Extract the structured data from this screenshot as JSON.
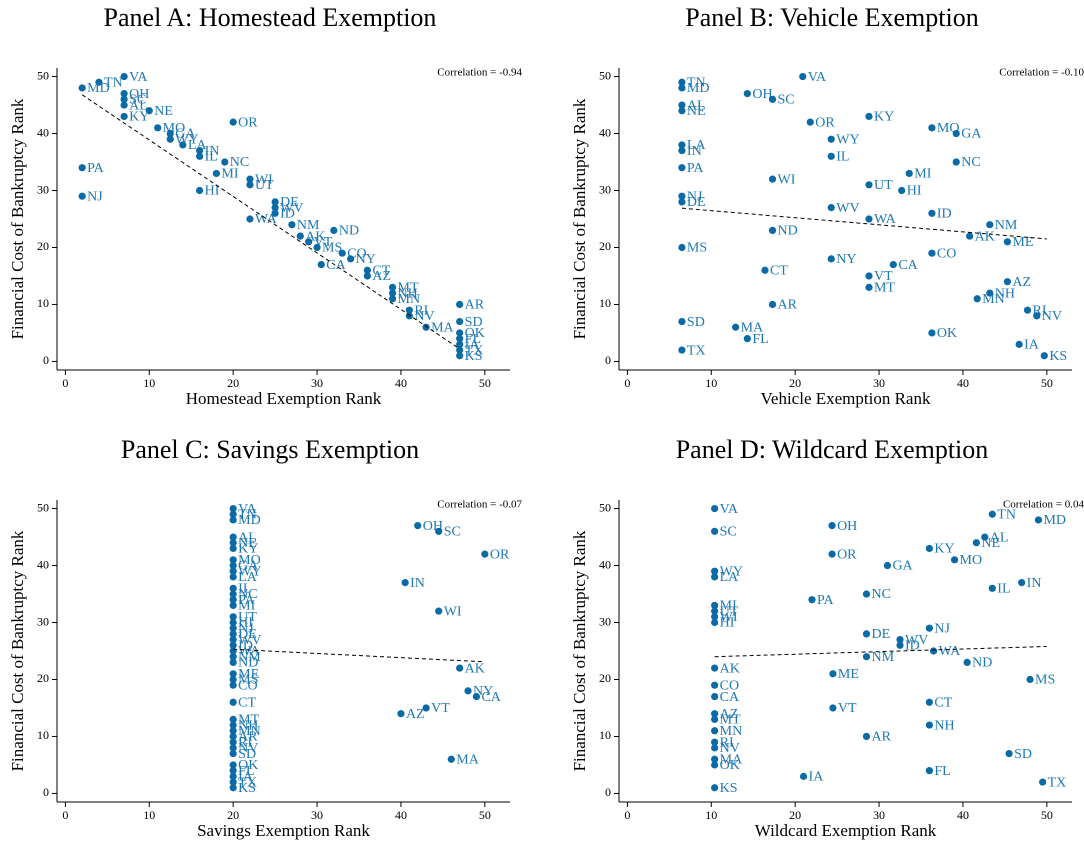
{
  "chart_data": [
    {
      "type": "scatter",
      "title": "Panel A: Homestead Exemption",
      "xlabel": "Homestead Exemption Rank",
      "ylabel": "Financial Cost of Bankruptcy Rank",
      "annotation": "Correlation = -0.94",
      "color": "#0a6aa6",
      "xlim": [
        -1,
        53
      ],
      "ylim": [
        -1.5,
        51.5
      ],
      "xticks": [
        0,
        10,
        20,
        30,
        40,
        50
      ],
      "yticks": [
        0,
        10,
        20,
        30,
        40,
        50
      ],
      "labels": [
        "VA",
        "TN",
        "MD",
        "OH",
        "SC",
        "AL",
        "NE",
        "KY",
        "OR",
        "MO",
        "GA",
        "WY",
        "LA",
        "IN",
        "IL",
        "NC",
        "PA",
        "MI",
        "WI",
        "UT",
        "HI",
        "NJ",
        "DE",
        "WV",
        "ID",
        "WA",
        "NM",
        "ND",
        "AK",
        "VT",
        "MS",
        "CO",
        "NY",
        "CA",
        "CT",
        "AZ",
        "MT",
        "NH",
        "MN",
        "AR",
        "RI",
        "NV",
        "SD",
        "MA",
        "OK",
        "FL",
        "IA",
        "TX",
        "KS"
      ],
      "x": [
        7,
        4,
        2,
        7,
        7,
        7,
        10,
        7,
        20,
        11,
        12.5,
        12.5,
        14,
        16,
        16,
        19,
        2,
        18,
        22,
        22,
        16,
        2,
        25,
        25,
        25,
        22,
        27,
        32,
        28,
        29,
        30,
        33,
        34,
        30.5,
        36,
        36,
        39,
        39,
        39,
        47,
        41,
        41,
        47,
        43,
        47,
        47,
        47,
        47,
        47
      ],
      "values": [
        50,
        49,
        48,
        47,
        46,
        45,
        44,
        43,
        42,
        41,
        40,
        39,
        38,
        37,
        36,
        35,
        34,
        33,
        32,
        31,
        30,
        29,
        28,
        27,
        26,
        25,
        24,
        23,
        22,
        21,
        20,
        19,
        18,
        17,
        16,
        15,
        13,
        12,
        11,
        10,
        9,
        8,
        7,
        6,
        5,
        4,
        3,
        2,
        1
      ],
      "fit_x": [
        2,
        47
      ],
      "fit_y": [
        46.8,
        2.2
      ]
    },
    {
      "type": "scatter",
      "title": "Panel B: Vehicle Exemption",
      "xlabel": "Vehicle Exemption Rank",
      "ylabel": "Financial Cost of Bankruptcy Rank",
      "annotation": "Correlation = -0.10",
      "color": "#0a6aa6",
      "xlim": [
        -1,
        53
      ],
      "ylim": [
        -1.5,
        51.5
      ],
      "xticks": [
        0,
        10,
        20,
        30,
        40,
        50
      ],
      "yticks": [
        0,
        10,
        20,
        30,
        40,
        50
      ],
      "labels": [
        "TN",
        "MD",
        "AL",
        "NE",
        "LA",
        "IN",
        "PA",
        "NJ",
        "DE",
        "MS",
        "SD",
        "TX",
        "VA",
        "OH",
        "SC",
        "OR",
        "KY",
        "WY",
        "IL",
        "MO",
        "GA",
        "NC",
        "MI",
        "HI",
        "UT",
        "WI",
        "WV",
        "WA",
        "ID",
        "NM",
        "AK",
        "ME",
        "ND",
        "NY",
        "CA",
        "CO",
        "CT",
        "VT",
        "MT",
        "AZ",
        "NH",
        "MN",
        "RI",
        "NV",
        "AR",
        "MA",
        "FL",
        "OK",
        "IA",
        "KS"
      ],
      "x": [
        6.5,
        6.5,
        6.5,
        6.5,
        6.5,
        6.5,
        6.5,
        6.5,
        6.5,
        6.5,
        6.5,
        6.5,
        20.9,
        14.3,
        17.3,
        21.8,
        28.8,
        24.3,
        24.3,
        36.3,
        39.2,
        39.2,
        33.6,
        32.7,
        28.8,
        17.3,
        24.3,
        28.8,
        36.3,
        43.2,
        40.8,
        45.3,
        17.3,
        24.3,
        31.7,
        36.3,
        16.4,
        28.8,
        28.8,
        45.3,
        43.2,
        41.7,
        47.7,
        48.8,
        17.3,
        12.9,
        14.3,
        36.3,
        46.7,
        49.7
      ],
      "values": [
        49,
        48,
        45,
        44,
        38,
        37,
        34,
        29,
        28,
        20,
        7,
        2,
        50,
        47,
        46,
        42,
        43,
        39,
        36,
        41,
        40,
        35,
        33,
        30,
        31,
        32,
        27,
        25,
        26,
        24,
        22,
        21,
        23,
        18,
        17,
        19,
        16,
        15,
        13,
        14,
        12,
        11,
        9,
        8,
        10,
        6,
        4,
        5,
        3,
        1
      ],
      "fit_x": [
        6.5,
        50
      ],
      "fit_y": [
        26.9,
        21.5
      ]
    },
    {
      "type": "scatter",
      "title": "Panel C: Savings Exemption",
      "xlabel": "Savings Exemption Rank",
      "ylabel": "Financial Cost of Bankruptcy Rank",
      "annotation": "Correlation = -0.07",
      "color": "#0a6aa6",
      "xlim": [
        -1,
        53
      ],
      "ylim": [
        -1.5,
        51.5
      ],
      "xticks": [
        0,
        10,
        20,
        30,
        40,
        50
      ],
      "yticks": [
        0,
        10,
        20,
        30,
        40,
        50
      ],
      "labels": [
        "VA",
        "TN",
        "MD",
        "AL",
        "NE",
        "KY",
        "MO",
        "GA",
        "WY",
        "LA",
        "IL",
        "NC",
        "PA",
        "MI",
        "UT",
        "HI",
        "NJ",
        "DE",
        "WV",
        "ID",
        "WA",
        "NM",
        "ND",
        "ME",
        "MS",
        "CO",
        "CT",
        "MT",
        "NH",
        "MN",
        "AR",
        "RI",
        "NV",
        "SD",
        "OK",
        "FL",
        "IA",
        "TX",
        "KS",
        "OH",
        "SC",
        "OR",
        "IN",
        "WI",
        "AK",
        "NY",
        "CA",
        "VT",
        "AZ",
        "MA"
      ],
      "x": [
        20,
        20,
        20,
        20,
        20,
        20,
        20,
        20,
        20,
        20,
        20,
        20,
        20,
        20,
        20,
        20,
        20,
        20,
        20,
        20,
        20,
        20,
        20,
        20,
        20,
        20,
        20,
        20,
        20,
        20,
        20,
        20,
        20,
        20,
        20,
        20,
        20,
        20,
        20,
        42,
        44.5,
        50,
        40.5,
        44.5,
        47,
        48,
        49,
        43,
        40,
        46
      ],
      "values": [
        50,
        49,
        48,
        45,
        44,
        43,
        41,
        40,
        39,
        38,
        36,
        35,
        34,
        33,
        31,
        30,
        29,
        28,
        27,
        26,
        25,
        24,
        23,
        21,
        20,
        19,
        16,
        13,
        12,
        11,
        10,
        9,
        8,
        7,
        5,
        4,
        3,
        2,
        1,
        47,
        46,
        42,
        37,
        32,
        22,
        18,
        17,
        15,
        14,
        6
      ],
      "fit_x": [
        20,
        50
      ],
      "fit_y": [
        25.3,
        23.1
      ]
    },
    {
      "type": "scatter",
      "title": "Panel D: Wildcard Exemption",
      "xlabel": "Wildcard Exemption Rank",
      "ylabel": "Financial Cost of Bankruptcy Rank",
      "annotation": "Correlation = 0.04",
      "color": "#0a6aa6",
      "xlim": [
        -1,
        53
      ],
      "ylim": [
        -1.5,
        51.5
      ],
      "xticks": [
        0,
        10,
        20,
        30,
        40,
        50
      ],
      "yticks": [
        0,
        10,
        20,
        30,
        40,
        50
      ],
      "labels": [
        "VA",
        "SC",
        "WY",
        "LA",
        "MI",
        "UT",
        "WI",
        "HI",
        "AK",
        "CO",
        "CA",
        "AZ",
        "MT",
        "MN",
        "RI",
        "NV",
        "MA",
        "OK",
        "KS",
        "OH",
        "OR",
        "PA",
        "GA",
        "MO",
        "KY",
        "NE",
        "AL",
        "TN",
        "MD",
        "IL",
        "IN",
        "NC",
        "NJ",
        "DE",
        "WV",
        "ID",
        "NM",
        "WA",
        "ND",
        "MS",
        "ME",
        "CT",
        "NH",
        "VT",
        "AR",
        "SD",
        "FL",
        "IA",
        "TX"
      ],
      "x": [
        10.4,
        10.4,
        10.4,
        10.4,
        10.4,
        10.4,
        10.4,
        10.4,
        10.4,
        10.4,
        10.4,
        10.4,
        10.4,
        10.4,
        10.4,
        10.4,
        10.4,
        10.4,
        10.4,
        24.4,
        24.4,
        22,
        31,
        39,
        36,
        41.6,
        42.6,
        43.5,
        49,
        43.5,
        47,
        28.5,
        36,
        28.5,
        32.5,
        32.5,
        28.5,
        36.5,
        40.5,
        48,
        24.5,
        36,
        36,
        24.5,
        28.5,
        45.5,
        36,
        21,
        49.5
      ],
      "values": [
        50,
        46,
        39,
        38,
        33,
        32,
        31,
        30,
        22,
        19,
        17,
        14,
        13,
        11,
        9,
        8,
        6,
        5,
        1,
        47,
        42,
        34,
        40,
        41,
        43,
        44,
        45,
        49,
        48,
        36,
        37,
        35,
        29,
        28,
        27,
        26,
        24,
        25,
        23,
        20,
        21,
        16,
        12,
        15,
        10,
        7,
        4,
        3,
        2
      ],
      "fit_x": [
        10.4,
        50
      ],
      "fit_y": [
        24,
        25.8
      ]
    }
  ]
}
